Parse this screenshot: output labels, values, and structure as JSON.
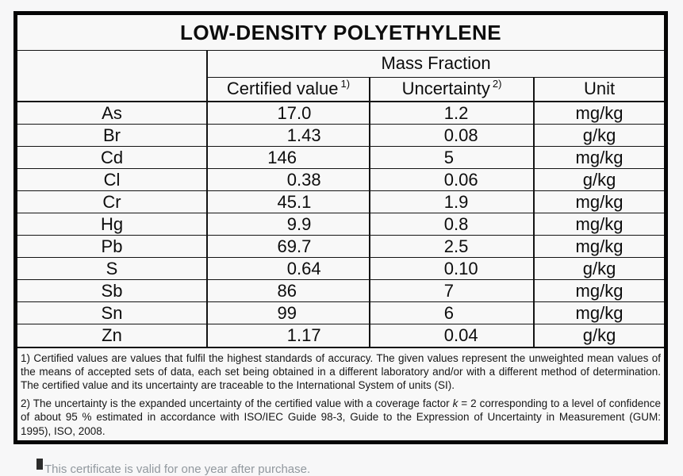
{
  "title": "LOW-DENSITY POLYETHYLENE",
  "table": {
    "group_header": "Mass Fraction",
    "columns": {
      "certified_label": "Certified value",
      "certified_sup": "1)",
      "uncertainty_label": "Uncertainty",
      "uncertainty_sup": "2)",
      "unit_label": "Unit"
    },
    "rows": [
      {
        "element": "As",
        "certified": "17.0",
        "uncertainty": "1.2",
        "unit": "mg/kg"
      },
      {
        "element": "Br",
        "certified": "1.43",
        "uncertainty": "0.08",
        "unit": "g/kg"
      },
      {
        "element": "Cd",
        "certified": "146",
        "uncertainty": "5",
        "unit": "mg/kg"
      },
      {
        "element": "Cl",
        "certified": "0.38",
        "uncertainty": "0.06",
        "unit": "g/kg"
      },
      {
        "element": "Cr",
        "certified": "45.1",
        "uncertainty": "1.9",
        "unit": "mg/kg"
      },
      {
        "element": "Hg",
        "certified": "9.9",
        "uncertainty": "0.8",
        "unit": "mg/kg"
      },
      {
        "element": "Pb",
        "certified": "69.7",
        "uncertainty": "2.5",
        "unit": "mg/kg"
      },
      {
        "element": "S",
        "certified": "0.64",
        "uncertainty": "0.10",
        "unit": "g/kg"
      },
      {
        "element": "Sb",
        "certified": "86",
        "uncertainty": "7",
        "unit": "mg/kg"
      },
      {
        "element": "Sn",
        "certified": "99",
        "uncertainty": "6",
        "unit": "mg/kg"
      },
      {
        "element": "Zn",
        "certified": "1.17",
        "uncertainty": "0.04",
        "unit": "g/kg"
      }
    ]
  },
  "footnotes": {
    "note1": "1) Certified values are values that fulfil the highest standards of accuracy. The given values represent the unweighted mean values of the means of accepted sets of data, each set being obtained in a different laboratory and/or with a different method of determination. The certified value and its uncertainty are traceable to the International System of units (SI).",
    "note2_before_k": "2) The uncertainty is the expanded uncertainty of the certified value with a coverage factor ",
    "note2_k_term": "k",
    "note2_after_k": " = 2 corresponding to a level of confidence of about 95 % estimated in accordance with ISO/IEC Guide 98-3, Guide to the Expression of Uncertainty in Measurement (GUM: 1995), ISO, 2008."
  },
  "clipped_bottom_text": "This certificate is valid for one year after purchase.",
  "colors": {
    "page_background": "#f7f7f8",
    "border": "#060606",
    "text": "#0d0d0d",
    "clipped_text": "#91989e"
  }
}
